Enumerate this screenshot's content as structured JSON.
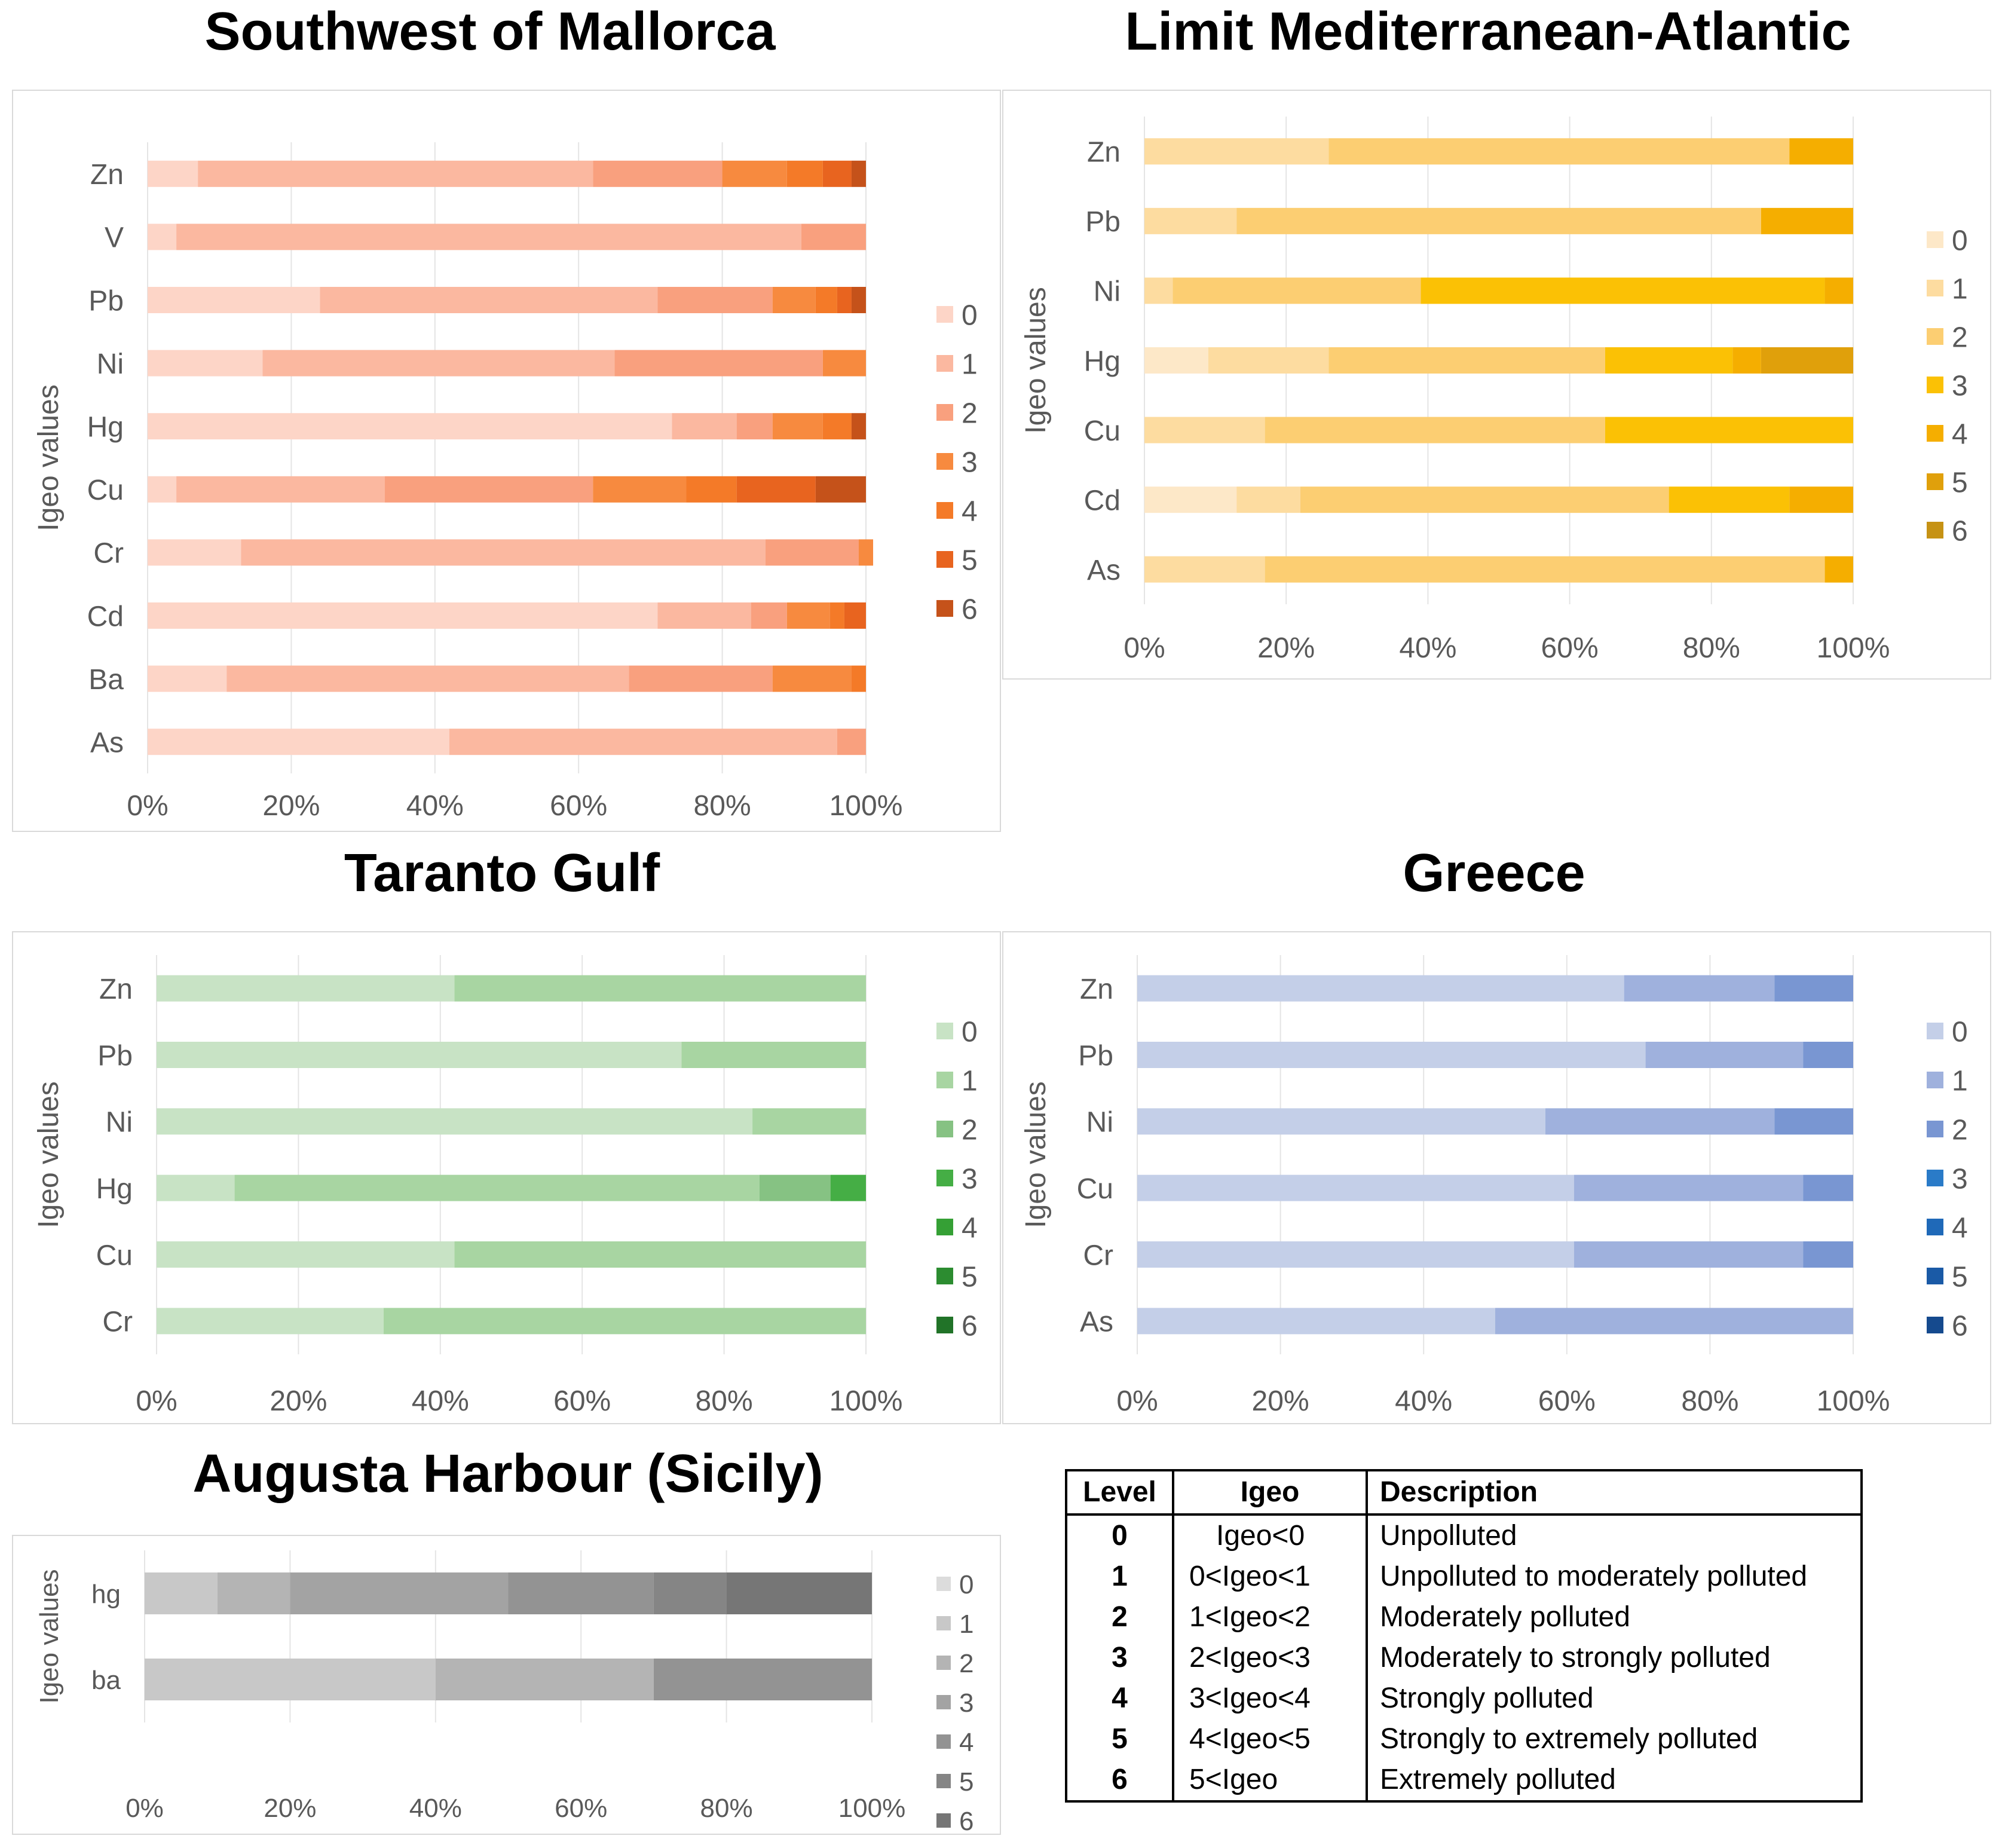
{
  "chart_data": [
    {
      "type": "bar",
      "orientation": "horizontal",
      "stacked": "percent",
      "title": "Southwest of Mallorca",
      "ylabel": "Igeo values",
      "categories": [
        "Zn",
        "V",
        "Pb",
        "Ni",
        "Hg",
        "Cu",
        "Cr",
        "Cd",
        "Ba",
        "As"
      ],
      "x_ticks": [
        "0%",
        "20%",
        "40%",
        "60%",
        "80%",
        "100%"
      ],
      "xlim": [
        0,
        100
      ],
      "grid": true,
      "legend_position": "right",
      "legend": [
        "0",
        "1",
        "2",
        "3",
        "4",
        "5",
        "6"
      ],
      "colors": [
        "#fdd5c7",
        "#fbb8a0",
        "#f9a07e",
        "#f78a3f",
        "#f47a28",
        "#e8641f",
        "#c5521a"
      ],
      "series": [
        {
          "name": "0",
          "values": [
            7,
            4,
            24,
            16,
            73,
            4,
            13,
            71,
            11,
            42
          ]
        },
        {
          "name": "1",
          "values": [
            55,
            87,
            47,
            49,
            9,
            29,
            73,
            13,
            56,
            54
          ]
        },
        {
          "name": "2",
          "values": [
            18,
            9,
            16,
            29,
            5,
            29,
            13,
            5,
            20,
            4
          ]
        },
        {
          "name": "3",
          "values": [
            9,
            0,
            6,
            6,
            7,
            13,
            2,
            6,
            11,
            0
          ]
        },
        {
          "name": "4",
          "values": [
            5,
            0,
            3,
            0,
            4,
            7,
            0,
            2,
            2,
            0
          ]
        },
        {
          "name": "5",
          "values": [
            4,
            0,
            2,
            0,
            0,
            11,
            0,
            3,
            0,
            0
          ]
        },
        {
          "name": "6",
          "values": [
            2,
            0,
            2,
            0,
            2,
            7,
            0,
            0,
            0,
            0
          ]
        }
      ]
    },
    {
      "type": "bar",
      "orientation": "horizontal",
      "stacked": "percent",
      "title": "Limit Mediterranean-Atlantic",
      "ylabel": "Igeo values",
      "categories": [
        "Zn",
        "Pb",
        "Ni",
        "Hg",
        "Cu",
        "Cd",
        "As"
      ],
      "x_ticks": [
        "0%",
        "20%",
        "40%",
        "60%",
        "80%",
        "100%"
      ],
      "xlim": [
        0,
        100
      ],
      "grid": true,
      "legend_position": "right",
      "legend": [
        "0",
        "1",
        "2",
        "3",
        "4",
        "5",
        "6"
      ],
      "colors": [
        "#fde8c8",
        "#fddca0",
        "#fcce72",
        "#fbc105",
        "#f5ae00",
        "#e0a00b",
        "#c69214"
      ],
      "series": [
        {
          "name": "0",
          "values": [
            0,
            0,
            0,
            9,
            0,
            13,
            0
          ]
        },
        {
          "name": "1",
          "values": [
            26,
            13,
            4,
            17,
            17,
            9,
            17
          ]
        },
        {
          "name": "2",
          "values": [
            65,
            74,
            35,
            39,
            48,
            52,
            79
          ]
        },
        {
          "name": "3",
          "values": [
            0,
            0,
            57,
            18,
            35,
            17,
            0
          ]
        },
        {
          "name": "4",
          "values": [
            9,
            13,
            4,
            4,
            0,
            9,
            4
          ]
        },
        {
          "name": "5",
          "values": [
            0,
            0,
            0,
            13,
            0,
            0,
            0
          ]
        },
        {
          "name": "6",
          "values": [
            0,
            0,
            0,
            0,
            0,
            0,
            0
          ]
        }
      ]
    },
    {
      "type": "bar",
      "orientation": "horizontal",
      "stacked": "percent",
      "title": "Taranto Gulf",
      "ylabel": "Igeo values",
      "categories": [
        "Zn",
        "Pb",
        "Ni",
        "Hg",
        "Cu",
        "Cr"
      ],
      "x_ticks": [
        "0%",
        "20%",
        "40%",
        "60%",
        "80%",
        "100%"
      ],
      "xlim": [
        0,
        100
      ],
      "grid": true,
      "legend_position": "right",
      "legend": [
        "0",
        "1",
        "2",
        "3",
        "4",
        "5",
        "6"
      ],
      "colors": [
        "#c8e3c5",
        "#a8d5a2",
        "#86c283",
        "#45ae45",
        "#35a035",
        "#2c8c30",
        "#217328"
      ],
      "series": [
        {
          "name": "0",
          "values": [
            42,
            74,
            84,
            11,
            42,
            32
          ]
        },
        {
          "name": "1",
          "values": [
            58,
            26,
            16,
            74,
            58,
            68
          ]
        },
        {
          "name": "2",
          "values": [
            0,
            0,
            0,
            10,
            0,
            0
          ]
        },
        {
          "name": "3",
          "values": [
            0,
            0,
            0,
            5,
            0,
            0
          ]
        },
        {
          "name": "4",
          "values": [
            0,
            0,
            0,
            0,
            0,
            0
          ]
        },
        {
          "name": "5",
          "values": [
            0,
            0,
            0,
            0,
            0,
            0
          ]
        },
        {
          "name": "6",
          "values": [
            0,
            0,
            0,
            0,
            0,
            0
          ]
        }
      ]
    },
    {
      "type": "bar",
      "orientation": "horizontal",
      "stacked": "percent",
      "title": "Greece",
      "ylabel": "Igeo values",
      "categories": [
        "Zn",
        "Pb",
        "Ni",
        "Cu",
        "Cr",
        "As"
      ],
      "x_ticks": [
        "0%",
        "20%",
        "40%",
        "60%",
        "80%",
        "100%"
      ],
      "xlim": [
        0,
        100
      ],
      "grid": true,
      "legend_position": "right",
      "legend": [
        "0",
        "1",
        "2",
        "3",
        "4",
        "5",
        "6"
      ],
      "colors": [
        "#c4cfe8",
        "#9fb1dd",
        "#7996d2",
        "#2a7bc8",
        "#1f69b8",
        "#1a5aa6",
        "#154a8e"
      ],
      "series": [
        {
          "name": "0",
          "values": [
            68,
            71,
            57,
            61,
            61,
            50
          ]
        },
        {
          "name": "1",
          "values": [
            21,
            22,
            32,
            32,
            32,
            50
          ]
        },
        {
          "name": "2",
          "values": [
            11,
            7,
            11,
            7,
            7,
            0
          ]
        },
        {
          "name": "3",
          "values": [
            0,
            0,
            0,
            0,
            0,
            0
          ]
        },
        {
          "name": "4",
          "values": [
            0,
            0,
            0,
            0,
            0,
            0
          ]
        },
        {
          "name": "5",
          "values": [
            0,
            0,
            0,
            0,
            0,
            0
          ]
        },
        {
          "name": "6",
          "values": [
            0,
            0,
            0,
            0,
            0,
            0
          ]
        }
      ]
    },
    {
      "type": "bar",
      "orientation": "horizontal",
      "stacked": "percent",
      "title": "Augusta Harbour (Sicily)",
      "ylabel": "Igeo values",
      "categories": [
        "hg",
        "ba"
      ],
      "x_ticks": [
        "0%",
        "20%",
        "40%",
        "60%",
        "80%",
        "100%"
      ],
      "xlim": [
        0,
        100
      ],
      "grid": true,
      "legend_position": "right",
      "legend": [
        "0",
        "1",
        "2",
        "3",
        "4",
        "5",
        "6"
      ],
      "colors": [
        "#dcdcdc",
        "#c8c8c8",
        "#b4b4b4",
        "#a3a3a3",
        "#939393",
        "#858585",
        "#767676"
      ],
      "series": [
        {
          "name": "0",
          "values": [
            0,
            0
          ]
        },
        {
          "name": "1",
          "values": [
            10,
            40
          ]
        },
        {
          "name": "2",
          "values": [
            10,
            30
          ]
        },
        {
          "name": "3",
          "values": [
            30,
            0
          ]
        },
        {
          "name": "4",
          "values": [
            20,
            30
          ]
        },
        {
          "name": "5",
          "values": [
            10,
            0
          ]
        },
        {
          "name": "6",
          "values": [
            20,
            0
          ]
        }
      ]
    }
  ],
  "legend_table": {
    "headers": [
      "Level",
      "Igeo",
      "Description"
    ],
    "rows": [
      {
        "level": "0",
        "igeo": "Igeo<0",
        "description": "Unpolluted"
      },
      {
        "level": "1",
        "igeo": "0<Igeo<1",
        "description": "Unpolluted to moderately polluted"
      },
      {
        "level": "2",
        "igeo": "1<Igeo<2",
        "description": "Moderately polluted"
      },
      {
        "level": "3",
        "igeo": "2<Igeo<3",
        "description": "Moderately to strongly polluted"
      },
      {
        "level": "4",
        "igeo": "3<Igeo<4",
        "description": "Strongly polluted"
      },
      {
        "level": "5",
        "igeo": "4<Igeo<5",
        "description": "Strongly to extremely polluted"
      },
      {
        "level": "6",
        "igeo": "5<Igeo",
        "description": "Extremely polluted"
      }
    ]
  }
}
